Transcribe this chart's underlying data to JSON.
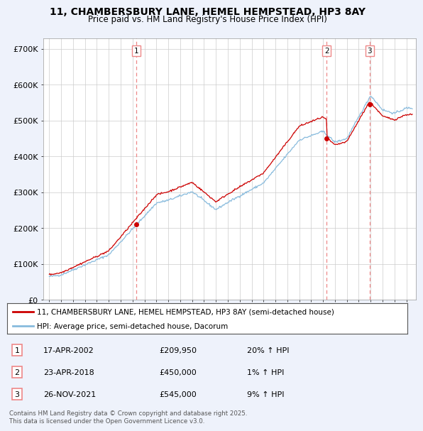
{
  "title": "11, CHAMBERSBURY LANE, HEMEL HEMPSTEAD, HP3 8AY",
  "subtitle": "Price paid vs. HM Land Registry's House Price Index (HPI)",
  "legend_line1": "11, CHAMBERSBURY LANE, HEMEL HEMPSTEAD, HP3 8AY (semi-detached house)",
  "legend_line2": "HPI: Average price, semi-detached house, Dacorum",
  "footer": "Contains HM Land Registry data © Crown copyright and database right 2025.\nThis data is licensed under the Open Government Licence v3.0.",
  "transactions": [
    {
      "num": 1,
      "date": "17-APR-2002",
      "price": "£209,950",
      "hpi": "20% ↑ HPI",
      "year": 2002.3
    },
    {
      "num": 2,
      "date": "23-APR-2018",
      "price": "£450,000",
      "hpi": "1% ↑ HPI",
      "year": 2018.3
    },
    {
      "num": 3,
      "date": "26-NOV-2021",
      "price": "£545,000",
      "hpi": "9% ↑ HPI",
      "year": 2021.9
    }
  ],
  "sale_years": [
    2002.3,
    2018.3,
    2021.9
  ],
  "sale_prices": [
    209950,
    450000,
    545000
  ],
  "red_color": "#cc0000",
  "blue_color": "#88bbdd",
  "dashed_color": "#ee8888",
  "background_color": "#eef2fb",
  "plot_bg": "#ffffff",
  "ylim": [
    0,
    730000
  ],
  "yticks": [
    0,
    100000,
    200000,
    300000,
    400000,
    500000,
    600000,
    700000
  ],
  "ytick_labels": [
    "£0",
    "£100K",
    "£200K",
    "£300K",
    "£400K",
    "£500K",
    "£600K",
    "£700K"
  ],
  "xlim_left": 1994.5,
  "xlim_right": 2025.8
}
